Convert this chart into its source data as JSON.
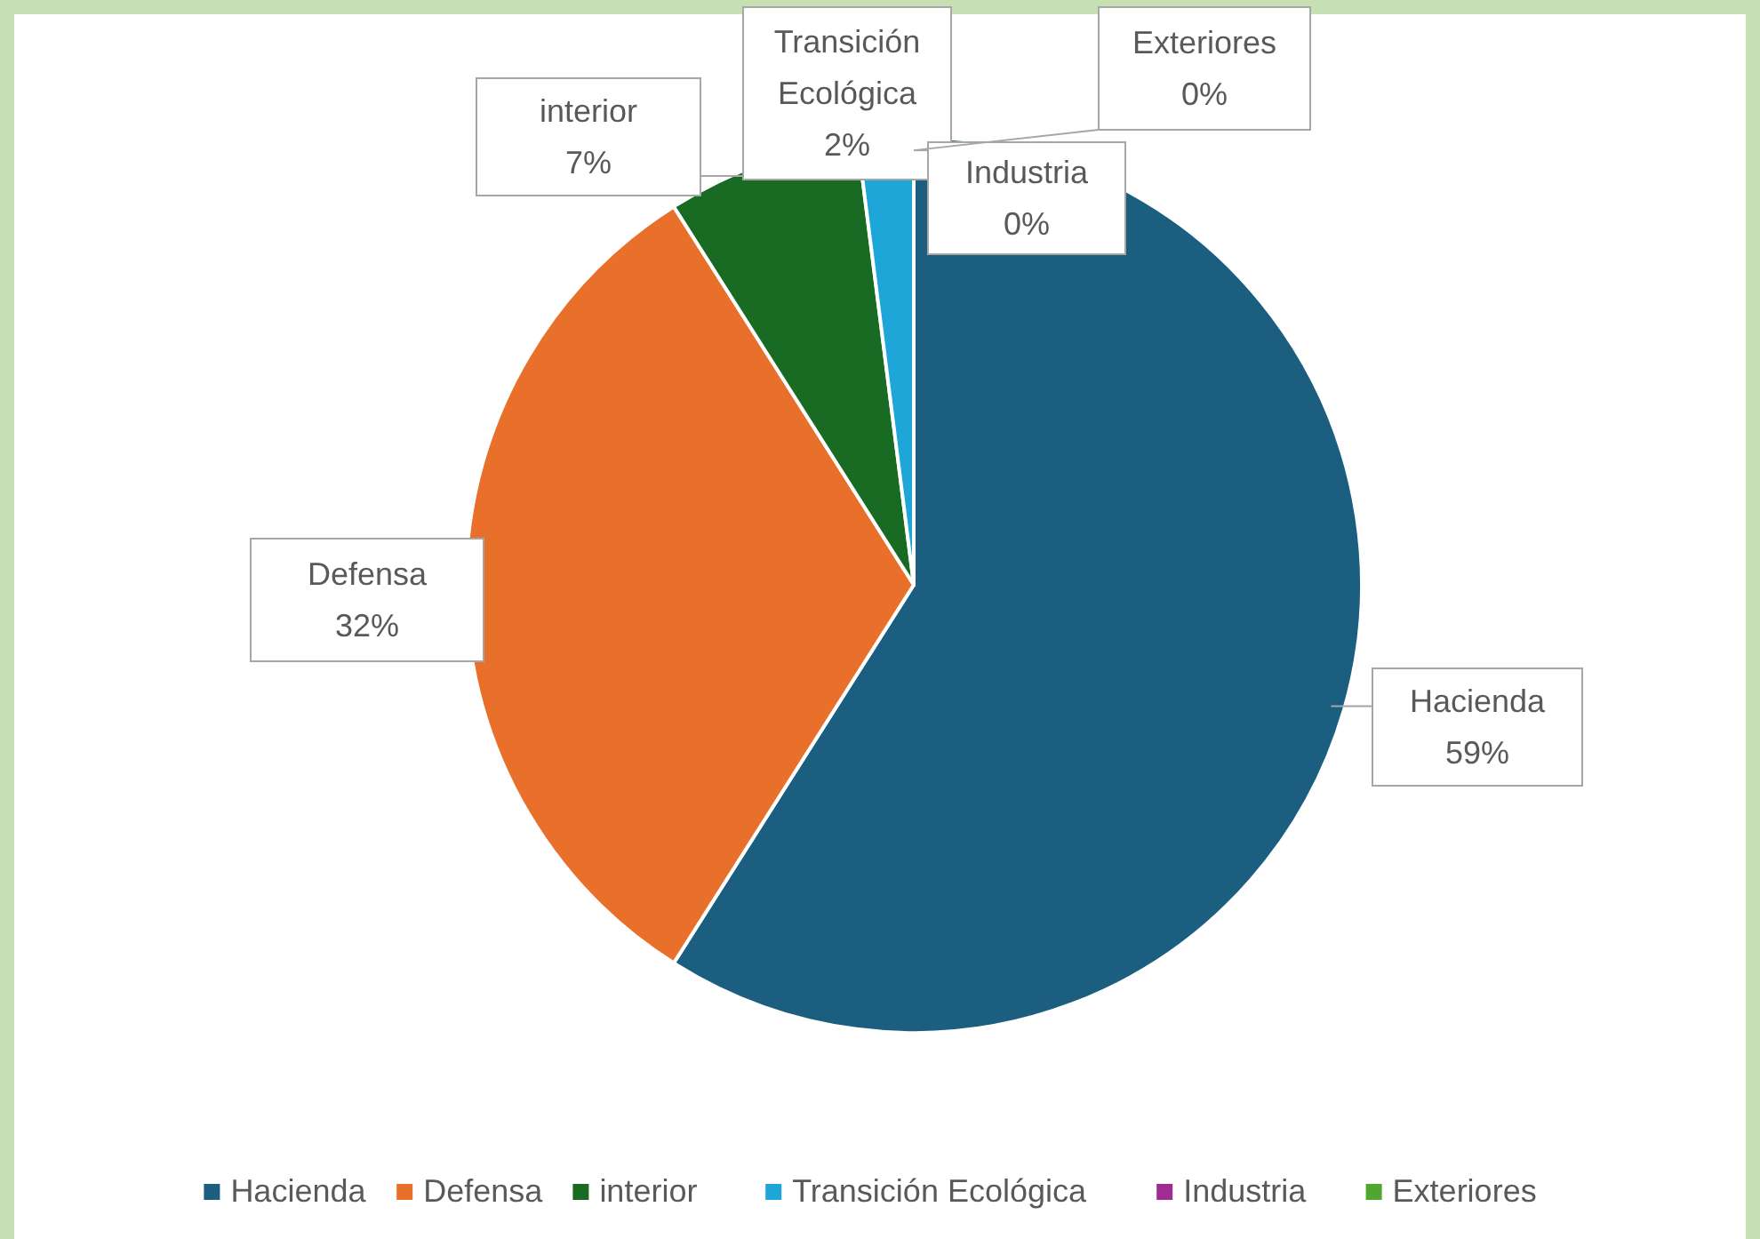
{
  "chart_data": {
    "type": "pie",
    "categories": [
      "Hacienda",
      "Defensa",
      "interior",
      "Transición Ecológica",
      "Industria",
      "Exteriores"
    ],
    "values": [
      59,
      32,
      7,
      2,
      0,
      0
    ],
    "colors": [
      "#1b5e7f",
      "#e8702a",
      "#196b24",
      "#1ea6d8",
      "#a02b93",
      "#4ea72e"
    ],
    "value_labels": [
      "59%",
      "32%",
      "7%",
      "2%",
      "0%",
      "0%"
    ],
    "legend": "bottom"
  }
}
